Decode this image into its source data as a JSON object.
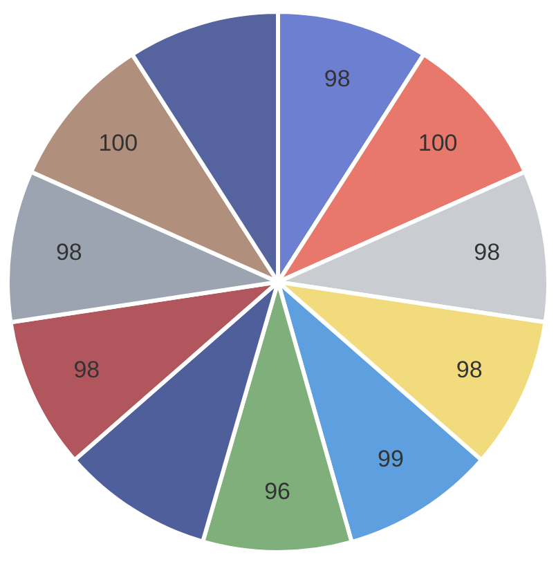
{
  "chart_data": {
    "type": "pie",
    "categories": [
      null,
      null,
      null,
      null,
      null,
      null,
      null,
      null,
      null,
      null,
      null
    ],
    "values": [
      98,
      100,
      98,
      98,
      99,
      96,
      98,
      98,
      98,
      100,
      98
    ],
    "value_labels": [
      "98",
      "100",
      "98",
      "98",
      "99",
      "96",
      null,
      "98",
      "98",
      "100",
      null
    ],
    "colors": [
      "#6d7fd0",
      "#e8786c",
      "#c9cdd2",
      "#f2db7c",
      "#5e9fdf",
      "#7fb07c",
      "#4f5f9c",
      "#b0565c",
      "#9ba4b0",
      "#b08f7c",
      "#55639f"
    ],
    "legend": false
  }
}
